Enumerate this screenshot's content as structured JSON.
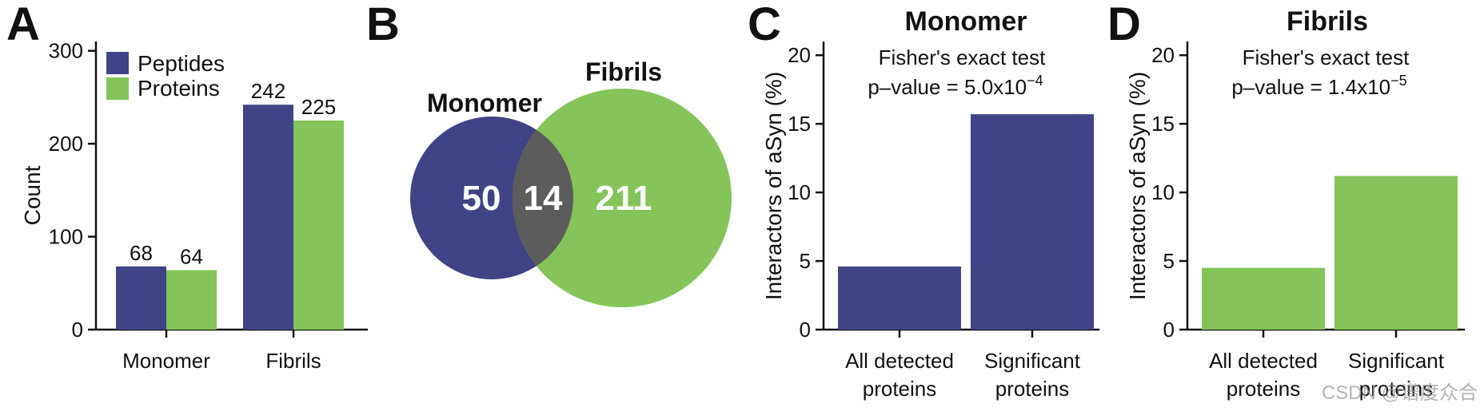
{
  "colors": {
    "navy": "#414387",
    "green": "#84c45a",
    "overlap": "#5c5c5c",
    "axis": "#111111"
  },
  "panels": {
    "a": "A",
    "b": "B",
    "c": "C",
    "d": "D"
  },
  "chart_data": [
    {
      "id": "A",
      "type": "bar",
      "categories": [
        "Monomer",
        "Fibrils"
      ],
      "series": [
        {
          "name": "Peptides",
          "values": [
            68,
            242
          ],
          "labels": [
            "68",
            "242"
          ],
          "color": "#414387"
        },
        {
          "name": "Proteins",
          "values": [
            64,
            225
          ],
          "labels": [
            "64",
            "225"
          ],
          "color": "#84c45a"
        }
      ],
      "xlabel": "",
      "ylabel": "Count",
      "ylim": [
        0,
        310
      ],
      "yticks": [
        0,
        100,
        200,
        300
      ],
      "ytick_labels": [
        "0",
        "100",
        "200",
        "300"
      ],
      "legend": "top-left",
      "grid": false
    },
    {
      "id": "B",
      "type": "venn",
      "sets": [
        {
          "name": "Monomer",
          "only": "50",
          "color": "#414387"
        },
        {
          "name": "Fibrils",
          "only": "211",
          "color": "#84c45a"
        }
      ],
      "overlap": "14"
    },
    {
      "id": "C",
      "type": "bar",
      "title": "Monomer",
      "annotation_line1": "Fisher's exact test",
      "annotation_line2": "p–value = 5.0x10",
      "annotation_exp": "−4",
      "categories": [
        [
          "All detected",
          "proteins"
        ],
        [
          "Significant",
          "proteins"
        ]
      ],
      "values": [
        4.6,
        15.7
      ],
      "color": "#414387",
      "ylabel": "Interactors of aSyn (%)",
      "ylim": [
        0,
        21
      ],
      "yticks": [
        0,
        5,
        10,
        15,
        20
      ],
      "ytick_labels": [
        "0",
        "5",
        "10",
        "15",
        "20"
      ],
      "grid": false
    },
    {
      "id": "D",
      "type": "bar",
      "title": "Fibrils",
      "annotation_line1": "Fisher's exact test",
      "annotation_line2": "p–value = 1.4x10",
      "annotation_exp": "−5",
      "categories": [
        [
          "All detected",
          "proteins"
        ],
        [
          "Significant",
          "proteins"
        ]
      ],
      "values": [
        4.5,
        11.2
      ],
      "color": "#84c45a",
      "ylabel": "Interactors of aSyn (%)",
      "ylim": [
        0,
        21
      ],
      "yticks": [
        0,
        5,
        10,
        15,
        20
      ],
      "ytick_labels": [
        "0",
        "5",
        "10",
        "15",
        "20"
      ],
      "grid": false
    }
  ],
  "watermark": "CSDN @谱度众合"
}
